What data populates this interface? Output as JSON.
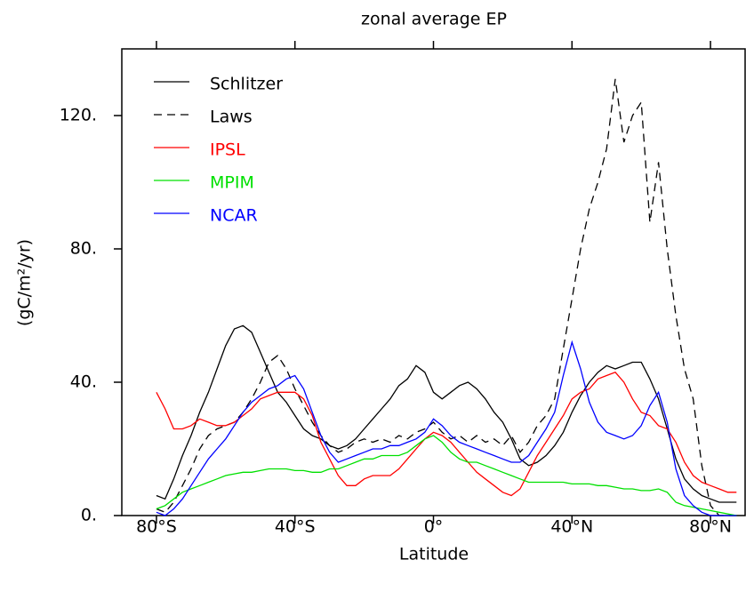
{
  "chart_data": {
    "type": "line",
    "title": "zonal average EP",
    "xlabel": "Latitude",
    "ylabel": "(gC/m²/yr)",
    "xlim": [
      -90,
      90
    ],
    "ylim": [
      0,
      140
    ],
    "xticks": [
      {
        "value": -80,
        "label": "80°S"
      },
      {
        "value": -40,
        "label": "40°S"
      },
      {
        "value": 0,
        "label": "0°"
      },
      {
        "value": 40,
        "label": "40°N"
      },
      {
        "value": 80,
        "label": "80°N"
      }
    ],
    "yticks": [
      {
        "value": 0,
        "label": "0."
      },
      {
        "value": 40,
        "label": "40."
      },
      {
        "value": 80,
        "label": "80."
      },
      {
        "value": 120,
        "label": "120."
      }
    ],
    "legend": "upper left",
    "x": [
      -80,
      -77.5,
      -75,
      -72.5,
      -70,
      -67.5,
      -65,
      -62.5,
      -60,
      -57.5,
      -55,
      -52.5,
      -50,
      -47.5,
      -45,
      -42.5,
      -40,
      -37.5,
      -35,
      -32.5,
      -30,
      -27.5,
      -25,
      -22.5,
      -20,
      -17.5,
      -15,
      -12.5,
      -10,
      -7.5,
      -5,
      -2.5,
      0,
      2.5,
      5,
      7.5,
      10,
      12.5,
      15,
      17.5,
      20,
      22.5,
      25,
      27.5,
      30,
      32.5,
      35,
      37.5,
      40,
      42.5,
      45,
      47.5,
      50,
      52.5,
      55,
      57.5,
      60,
      62.5,
      65,
      67.5,
      70,
      72.5,
      75,
      77.5,
      80,
      82.5,
      85,
      87.5
    ],
    "series": [
      {
        "name": "Schlitzer",
        "color": "#000000",
        "linestyle": "solid",
        "values": [
          6,
          5,
          11,
          18,
          24,
          31,
          37,
          44,
          51,
          56,
          57,
          55,
          49,
          43,
          37,
          34,
          30,
          26,
          24,
          23,
          21,
          20,
          21,
          23,
          26,
          29,
          32,
          35,
          39,
          41,
          45,
          43,
          37,
          35,
          37,
          39,
          40,
          38,
          35,
          31,
          28,
          23,
          17,
          15,
          16,
          18,
          21,
          25,
          31,
          36,
          40,
          43,
          45,
          44,
          45,
          46,
          46,
          41,
          35,
          26,
          17,
          11,
          8,
          6,
          5,
          4,
          4,
          4
        ]
      },
      {
        "name": "Laws",
        "color": "#000000",
        "linestyle": "dashed",
        "values": [
          2,
          1,
          4,
          9,
          14,
          20,
          24,
          26,
          27,
          28,
          31,
          35,
          40,
          46,
          48,
          44,
          38,
          33,
          28,
          24,
          21,
          19,
          20,
          22,
          23,
          22,
          23,
          22,
          24,
          23,
          25,
          26,
          28,
          25,
          23,
          24,
          22,
          24,
          22,
          23,
          21,
          24,
          19,
          22,
          27,
          30,
          35,
          50,
          65,
          80,
          92,
          100,
          110,
          131,
          112,
          120,
          124,
          88,
          106,
          80,
          60,
          44,
          35,
          15,
          3,
          0,
          0,
          0
        ]
      },
      {
        "name": "IPSL",
        "color": "#ff0000",
        "linestyle": "solid",
        "values": [
          37,
          32,
          26,
          26,
          27,
          29,
          28,
          27,
          27,
          28,
          30,
          32,
          35,
          36,
          37,
          37,
          37,
          35,
          30,
          22,
          17,
          12,
          9,
          9,
          11,
          12,
          12,
          12,
          14,
          17,
          20,
          23,
          25,
          24,
          22,
          19,
          16,
          13,
          11,
          9,
          7,
          6,
          8,
          13,
          18,
          22,
          26,
          30,
          35,
          37,
          38,
          41,
          42,
          43,
          40,
          35,
          31,
          30,
          27,
          26,
          22,
          16,
          12,
          10,
          9,
          8,
          7,
          7
        ]
      },
      {
        "name": "MPIM",
        "color": "#00e000",
        "linestyle": "solid",
        "values": [
          2,
          3,
          5,
          7,
          8,
          9,
          10,
          11,
          12,
          12.5,
          13,
          13,
          13.5,
          14,
          14,
          14,
          13.5,
          13.5,
          13,
          13,
          14,
          14,
          15,
          16,
          17,
          17,
          18,
          18,
          18,
          19,
          21,
          23,
          24,
          22,
          19,
          17,
          16,
          16,
          15,
          14,
          13,
          12,
          11,
          10,
          10,
          10,
          10,
          10,
          9.5,
          9.5,
          9.5,
          9,
          9,
          8.5,
          8,
          8,
          7.5,
          7.5,
          8,
          7,
          4,
          3,
          2.5,
          2,
          1.5,
          1,
          0.5,
          0
        ]
      },
      {
        "name": "NCAR",
        "color": "#0000ff",
        "linestyle": "solid",
        "values": [
          1,
          0,
          2,
          5,
          9,
          13,
          17,
          20,
          23,
          27,
          31,
          34,
          36,
          38,
          39,
          41,
          42,
          38,
          31,
          24,
          19,
          16,
          17,
          18,
          19,
          20,
          20,
          21,
          21,
          22,
          23,
          25,
          29,
          27,
          24,
          22,
          21,
          20,
          19,
          18,
          17,
          16,
          16,
          18,
          22,
          26,
          31,
          42,
          52,
          44,
          34,
          28,
          25,
          24,
          23,
          24,
          27,
          33,
          37,
          28,
          14,
          6,
          3,
          1,
          0,
          0,
          0,
          0
        ]
      }
    ]
  }
}
